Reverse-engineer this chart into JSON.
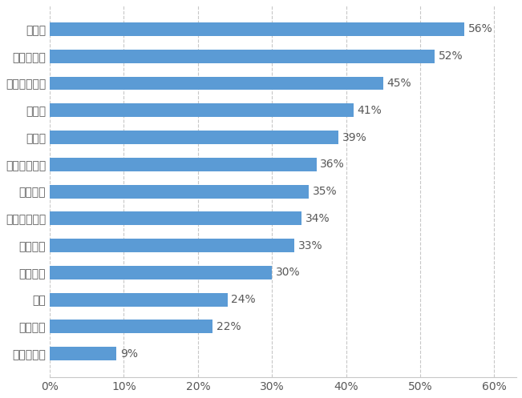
{
  "categories": [
    "现金流储备",
    "资本合作",
    "培训",
    "社区营销",
    "管理变革",
    "自由平台打造",
    "外卖业务",
    "绿色安全发展",
    "连锁化",
    "新零售",
    "数字化智能化",
    "供应链发展",
    "品牌化"
  ],
  "values": [
    9,
    22,
    24,
    30,
    33,
    34,
    35,
    36,
    39,
    41,
    45,
    52,
    56
  ],
  "bar_color": "#5B9BD5",
  "background_color": "#ffffff",
  "xlim": [
    0,
    63
  ],
  "xtick_labels": [
    "0%",
    "10%",
    "20%",
    "30%",
    "40%",
    "50%",
    "60%"
  ],
  "xtick_values": [
    0,
    10,
    20,
    30,
    40,
    50,
    60
  ],
  "label_fontsize": 10,
  "value_fontsize": 10,
  "bar_height": 0.5,
  "grid_color": "#C8C8C8",
  "text_color": "#595959"
}
